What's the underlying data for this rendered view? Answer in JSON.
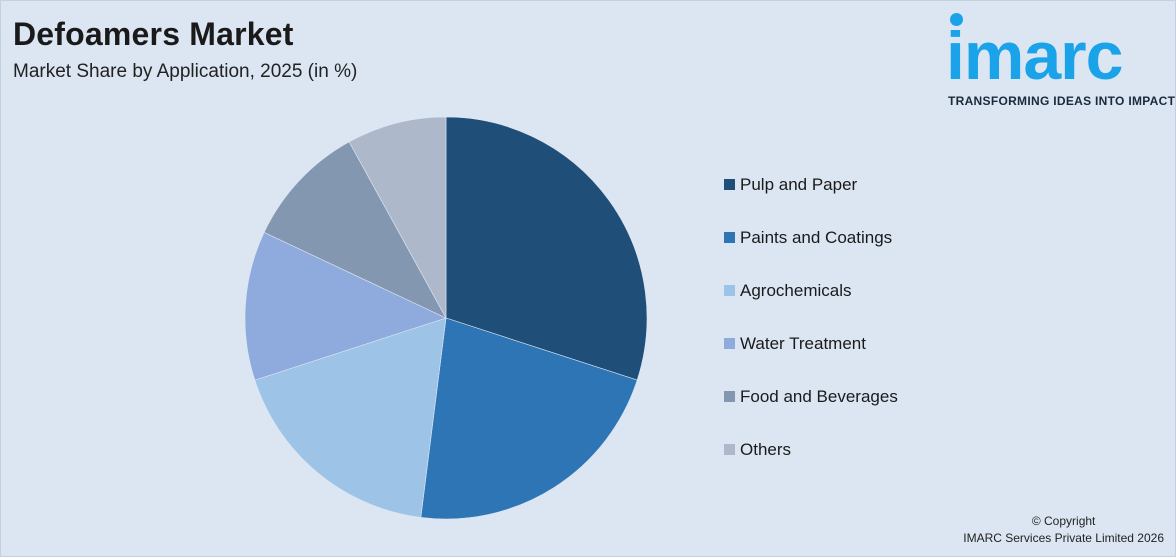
{
  "header": {
    "title": "Defoamers Market",
    "subtitle": "Market Share by Application, 2025 (in %)"
  },
  "logo": {
    "word": "imarc",
    "tagline": "TRANSFORMING IDEAS INTO IMPACT",
    "color": "#1aa3e8"
  },
  "chart_data": {
    "type": "pie",
    "title": "Defoamers Market",
    "subtitle": "Market Share by Application, 2025 (in %)",
    "start_angle": "12 o'clock, clockwise",
    "legend_position": "right",
    "slices": [
      {
        "label": "Pulp and Paper",
        "value": 30,
        "color": "#1f4e79"
      },
      {
        "label": "Paints and Coatings",
        "value": 22,
        "color": "#2e75b6"
      },
      {
        "label": "Agrochemicals",
        "value": 18,
        "color": "#9dc3e6"
      },
      {
        "label": "Water Treatment",
        "value": 12,
        "color": "#8faadc"
      },
      {
        "label": "Food and Beverages",
        "value": 10,
        "color": "#8497b0"
      },
      {
        "label": "Others",
        "value": 8,
        "color": "#adb9ca"
      }
    ]
  },
  "footer": {
    "copyright_line1": "© Copyright",
    "copyright_line2": "IMARC Services Private Limited 2026"
  }
}
